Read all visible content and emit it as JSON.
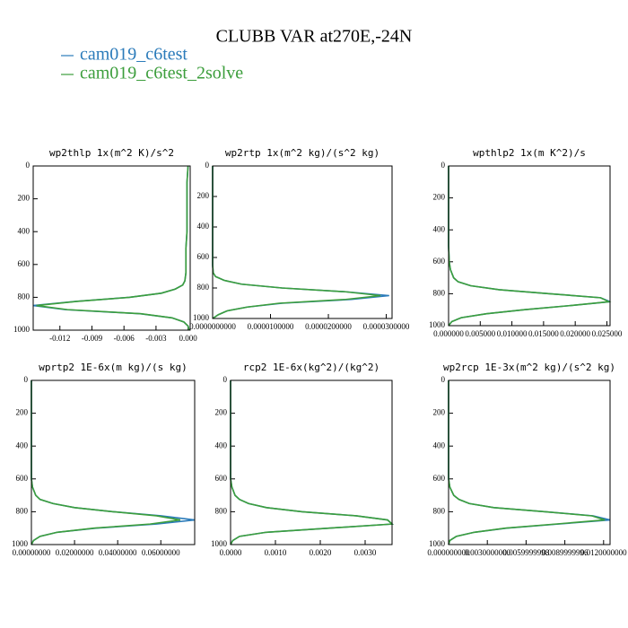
{
  "title": "CLUBB VAR at270E,-24N",
  "chart_data": [
    {
      "type": "line",
      "title": "wp2thlp  1x(m^2 K)/s^2",
      "y": [
        0,
        100,
        200,
        300,
        400,
        500,
        600,
        650,
        700,
        725,
        750,
        775,
        800,
        825,
        850,
        875,
        900,
        925,
        950,
        975,
        1000
      ],
      "series": [
        {
          "name": "cam019_c6test",
          "color": "#2b7bba",
          "values": [
            0,
            -0.0001,
            -0.0001,
            -0.0001,
            -0.0001,
            -0.0002,
            -0.0002,
            -0.0002,
            -0.0003,
            -0.0005,
            -0.0012,
            -0.0025,
            -0.0055,
            -0.0105,
            -0.0145,
            -0.0115,
            -0.0045,
            -0.0015,
            -0.0004,
            0,
            0.0001
          ]
        },
        {
          "name": "cam019_c6test_2solve",
          "color": "#3c9e3c",
          "values": [
            0,
            -0.0001,
            -0.0001,
            -0.0001,
            -0.0001,
            -0.0002,
            -0.0002,
            -0.0002,
            -0.0003,
            -0.0005,
            -0.0012,
            -0.0025,
            -0.0055,
            -0.0104,
            -0.0142,
            -0.0113,
            -0.0044,
            -0.0015,
            -0.0004,
            0,
            0.0001
          ]
        }
      ],
      "xlim": [
        -0.0145,
        0.0002
      ],
      "xticks": [
        -0.012,
        -0.009,
        -0.006,
        -0.003,
        {
          "value": 0,
          "label": "0.000"
        }
      ],
      "ylim": [
        1000,
        0
      ],
      "yticks": [
        0,
        200,
        400,
        600,
        800,
        1000
      ]
    },
    {
      "type": "line",
      "title": "wp2rtp  1x(m^2 kg)/(s^2 kg)",
      "y": [
        0,
        100,
        200,
        300,
        400,
        500,
        600,
        650,
        700,
        725,
        750,
        775,
        800,
        825,
        850,
        875,
        900,
        925,
        950,
        975,
        1000
      ],
      "series": [
        {
          "name": "cam019_c6test",
          "color": "#2b7bba",
          "values": [
            0,
            0,
            0,
            0,
            0,
            0,
            0,
            0,
            1e-07,
            5e-07,
            2e-06,
            5e-06,
            1.2e-05,
            2.3e-05,
            3.05e-05,
            2.4e-05,
            1.2e-05,
            6e-06,
            2.5e-06,
            1e-06,
            0
          ]
        },
        {
          "name": "cam019_c6test_2solve",
          "color": "#3c9e3c",
          "values": [
            0,
            0,
            0,
            0,
            0,
            0,
            0,
            0,
            1e-07,
            5e-07,
            2e-06,
            5e-06,
            1.2e-05,
            2.3e-05,
            2.9e-05,
            2.3e-05,
            1.15e-05,
            6e-06,
            2.5e-06,
            1e-06,
            0
          ]
        }
      ],
      "xlim": [
        0,
        3.1e-05
      ],
      "xticks": [
        {
          "value": 0,
          "label": "0.0000000000"
        },
        {
          "value": 1e-05,
          "label": "0.0000100000"
        },
        {
          "value": 2e-05,
          "label": "0.0000200000"
        },
        {
          "value": 3e-05,
          "label": "0.0000300000"
        }
      ],
      "ylim": [
        1000,
        0
      ],
      "yticks": [
        0,
        200,
        400,
        600,
        800,
        1000
      ]
    },
    {
      "type": "line",
      "title": "wpthlp2  1x(m K^2)/s",
      "y": [
        0,
        100,
        200,
        300,
        400,
        500,
        600,
        650,
        700,
        725,
        750,
        775,
        800,
        825,
        850,
        875,
        900,
        925,
        950,
        975,
        1000
      ],
      "series": [
        {
          "name": "cam019_c6test",
          "color": "#2b7bba",
          "values": [
            0,
            0,
            0,
            0,
            0,
            0,
            0.0001,
            0.0003,
            0.0008,
            0.0015,
            0.0035,
            0.008,
            0.016,
            0.024,
            0.0255,
            0.019,
            0.012,
            0.006,
            0.002,
            0.0005,
            0
          ]
        },
        {
          "name": "cam019_c6test_2solve",
          "color": "#3c9e3c",
          "values": [
            0,
            0,
            0,
            0,
            0,
            0,
            0.0001,
            0.0003,
            0.0008,
            0.0015,
            0.0035,
            0.008,
            0.016,
            0.024,
            0.0253,
            0.019,
            0.012,
            0.006,
            0.002,
            0.0005,
            0
          ]
        }
      ],
      "xlim": [
        0,
        0.0255
      ],
      "xticks": [
        {
          "value": 0,
          "label": "0.000000"
        },
        {
          "value": 0.005,
          "label": "0.005000"
        },
        {
          "value": 0.01,
          "label": "0.010000"
        },
        {
          "value": 0.015,
          "label": "0.015000"
        },
        {
          "value": 0.02,
          "label": "0.020000"
        },
        {
          "value": 0.025,
          "label": "0.025000"
        }
      ],
      "ylim": [
        1000,
        0
      ],
      "yticks": [
        0,
        200,
        400,
        600,
        800,
        1000
      ]
    },
    {
      "type": "line",
      "title": "wprtp2  1E-6x(m kg)/(s kg)",
      "y": [
        0,
        100,
        200,
        300,
        400,
        500,
        600,
        650,
        700,
        725,
        750,
        775,
        800,
        825,
        850,
        875,
        900,
        925,
        950,
        975,
        1000
      ],
      "series": [
        {
          "name": "cam019_c6test",
          "color": "#2b7bba",
          "values": [
            0,
            0,
            0,
            0,
            0,
            0,
            0,
            0.0005,
            0.002,
            0.004,
            0.01,
            0.02,
            0.038,
            0.06,
            0.0757,
            0.058,
            0.03,
            0.012,
            0.004,
            0.001,
            0
          ]
        },
        {
          "name": "cam019_c6test_2solve",
          "color": "#3c9e3c",
          "values": [
            0,
            0,
            0,
            0,
            0,
            0,
            0,
            0.0005,
            0.002,
            0.004,
            0.01,
            0.02,
            0.038,
            0.058,
            0.069,
            0.055,
            0.029,
            0.012,
            0.004,
            0.001,
            0
          ]
        }
      ],
      "xlim": [
        0,
        0.0757
      ],
      "xticks": [
        {
          "value": 0,
          "label": "0.00000000"
        },
        {
          "value": 0.02,
          "label": "0.02000000"
        },
        {
          "value": 0.04,
          "label": "0.04000000"
        },
        {
          "value": 0.06,
          "label": "0.06000000"
        }
      ],
      "ylim": [
        1000,
        0
      ],
      "yticks": [
        0,
        200,
        400,
        600,
        800,
        1000
      ]
    },
    {
      "type": "line",
      "title": "rcp2  1E-6x(kg^2)/(kg^2)",
      "y": [
        0,
        100,
        200,
        300,
        400,
        500,
        600,
        650,
        700,
        725,
        750,
        775,
        800,
        825,
        850,
        875,
        900,
        925,
        950,
        975,
        1000
      ],
      "series": [
        {
          "name": "cam019_c6test",
          "color": "#2b7bba",
          "values": [
            0,
            0,
            0,
            0,
            0,
            0,
            0,
            3e-05,
            0.0001,
            0.0002,
            0.0004,
            0.0008,
            0.0016,
            0.0028,
            0.0035,
            0.0036,
            0.0022,
            0.0008,
            0.0002,
            5e-05,
            0
          ]
        },
        {
          "name": "cam019_c6test_2solve",
          "color": "#3c9e3c",
          "values": [
            0,
            0,
            0,
            0,
            0,
            0,
            0,
            3e-05,
            0.0001,
            0.0002,
            0.0004,
            0.0008,
            0.0016,
            0.0028,
            0.0035,
            0.0036,
            0.0022,
            0.0008,
            0.0002,
            5e-05,
            0
          ]
        }
      ],
      "xlim": [
        0,
        0.0036
      ],
      "xticks": [
        {
          "value": 0,
          "label": "0.0000"
        },
        {
          "value": 0.001,
          "label": "0.0010"
        },
        {
          "value": 0.002,
          "label": "0.0020"
        },
        {
          "value": 0.003,
          "label": "0.0030"
        }
      ],
      "ylim": [
        1000,
        0
      ],
      "yticks": [
        0,
        200,
        400,
        600,
        800,
        1000
      ]
    },
    {
      "type": "line",
      "title": "wp2rcp  1E-3x(m^2 kg)/(s^2 kg)",
      "y": [
        0,
        100,
        200,
        300,
        400,
        500,
        600,
        650,
        700,
        725,
        750,
        775,
        800,
        825,
        850,
        875,
        900,
        925,
        950,
        975,
        1000
      ],
      "series": [
        {
          "name": "cam019_c6test",
          "color": "#2b7bba",
          "values": [
            0,
            0,
            0,
            0,
            0,
            0,
            0,
            0.0001,
            0.0004,
            0.0008,
            0.0016,
            0.0035,
            0.0075,
            0.0112,
            0.0125,
            0.0085,
            0.0045,
            0.002,
            0.0006,
            0.0001,
            0
          ]
        },
        {
          "name": "cam019_c6test_2solve",
          "color": "#3c9e3c",
          "values": [
            0,
            0,
            0,
            0,
            0,
            0,
            0,
            0.0001,
            0.0004,
            0.0008,
            0.0016,
            0.0035,
            0.0075,
            0.0111,
            0.0121,
            0.0083,
            0.0044,
            0.002,
            0.0006,
            0.0001,
            0
          ]
        }
      ],
      "xlim": [
        0,
        0.0125
      ],
      "xticks": [
        {
          "value": 0,
          "label": "0.000000000"
        },
        {
          "value": 0.003,
          "label": "0.0030000000"
        },
        {
          "value": 0.006,
          "label": "0.0059999998"
        },
        {
          "value": 0.009,
          "label": "0.0089999996"
        },
        {
          "value": 0.012,
          "label": "0.0120000000"
        }
      ],
      "ylim": [
        1000,
        0
      ],
      "yticks": [
        0,
        200,
        400,
        600,
        800,
        1000
      ]
    }
  ]
}
